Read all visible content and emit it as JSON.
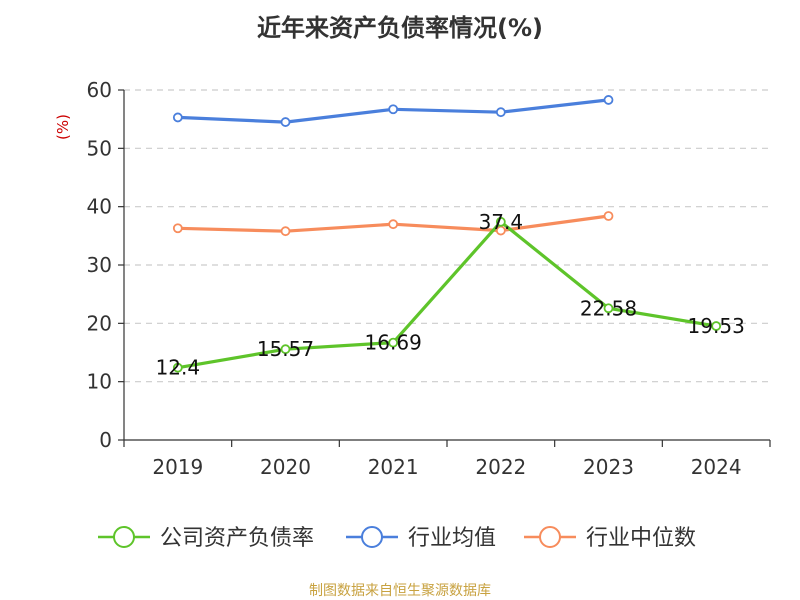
{
  "chart_data": {
    "type": "line",
    "title": "近年来资产负债率情况(%)",
    "ylabel": "(%)",
    "xlabel": "",
    "categories": [
      "2019",
      "2020",
      "2021",
      "2022",
      "2023",
      "2024"
    ],
    "ylim": [
      0,
      60
    ],
    "yticks": [
      0,
      10,
      20,
      30,
      40,
      50,
      60
    ],
    "grid": true,
    "legend_position": "bottom",
    "series": [
      {
        "name": "公司资产负债率",
        "color": "#5ec42a",
        "values": [
          12.4,
          15.57,
          16.69,
          37.4,
          22.58,
          19.53
        ],
        "labels": [
          "12.4",
          "15.57",
          "16.69",
          "37.4",
          "22.58",
          "19.53"
        ]
      },
      {
        "name": "行业均值",
        "color": "#4a7fdc",
        "values": [
          55.3,
          54.5,
          56.7,
          56.2,
          58.3,
          null
        ],
        "labels": null
      },
      {
        "name": "行业中位数",
        "color": "#f78c5c",
        "values": [
          36.3,
          35.8,
          37.0,
          35.9,
          38.4,
          null
        ],
        "labels": null
      }
    ]
  },
  "source": "制图数据来自恒生聚源数据库"
}
